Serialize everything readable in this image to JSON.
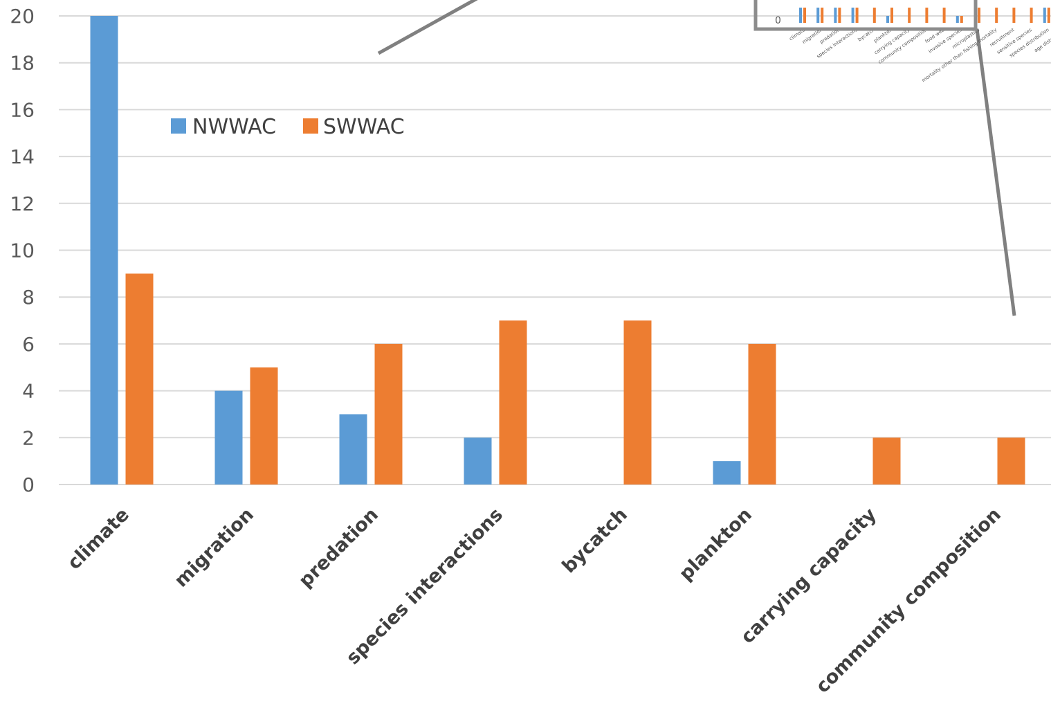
{
  "chart_data": {
    "type": "bar",
    "title": "",
    "xlabel": "",
    "ylabel": "",
    "ylim": [
      0,
      20
    ],
    "yticks": [
      0,
      2,
      4,
      6,
      8,
      10,
      12,
      14,
      16,
      18,
      20
    ],
    "grid": true,
    "legend_position": "upper-left-inside",
    "categories": [
      "climate",
      "migration",
      "predation",
      "species interactions",
      "bycatch",
      "plankton",
      "carrying capacity",
      "community composition"
    ],
    "series": [
      {
        "name": "NWWAC",
        "color": "#5b9bd5",
        "values": [
          20,
          4,
          3,
          2,
          0,
          1,
          0,
          0
        ]
      },
      {
        "name": "SWWAC",
        "color": "#ed7d31",
        "values": [
          9,
          5,
          6,
          7,
          7,
          6,
          2,
          2
        ]
      }
    ]
  },
  "inset": {
    "description": "thumbnail of full chart (cropped)",
    "zero_label": "0",
    "categories": [
      "climate",
      "migration",
      "predation",
      "species interactions",
      "bycatch",
      "plankton",
      "carrying capacity",
      "community composition",
      "food web",
      "invasive species",
      "microplastics",
      "mortality other than fishing mortality",
      "recruitment",
      "sensitive species",
      "species distribution",
      "age distribution"
    ]
  },
  "colors": {
    "nwwac": "#5b9bd5",
    "swwac": "#ed7d31",
    "grid": "#d9d9d9",
    "connector": "#808080"
  }
}
